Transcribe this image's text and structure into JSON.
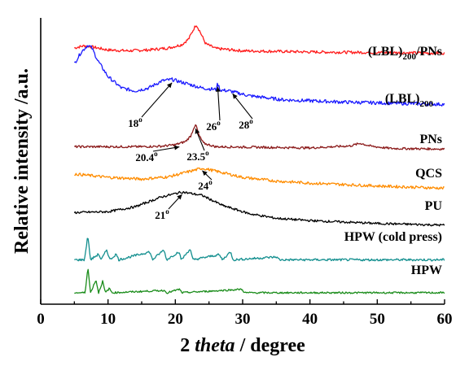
{
  "chart_data": {
    "type": "line",
    "xlabel_prefix": "2 ",
    "xlabel_italic": "theta",
    "xlabel_suffix": " / degree",
    "ylabel": "Relative intensity /a.u.",
    "xlim": [
      0,
      60
    ],
    "xticks": [
      0,
      10,
      20,
      30,
      40,
      50,
      60
    ],
    "series": [
      {
        "name": "(LBL)",
        "name_sub": "200",
        "name_suffix": "/PNs",
        "color": "#ff1a1a",
        "baseline": 0.885,
        "noise": 0.005,
        "points": [
          [
            5,
            0.01
          ],
          [
            6.5,
            0.018
          ],
          [
            8,
            0.012
          ],
          [
            10,
            0.003
          ],
          [
            13,
            0.0
          ],
          [
            16,
            0.003
          ],
          [
            19,
            0.01
          ],
          [
            21,
            0.022
          ],
          [
            22,
            0.042
          ],
          [
            22.7,
            0.075
          ],
          [
            23.1,
            0.092
          ],
          [
            23.6,
            0.07
          ],
          [
            24.5,
            0.025
          ],
          [
            26,
            0.008
          ],
          [
            30,
            0.0
          ],
          [
            40,
            -0.004
          ],
          [
            50,
            -0.006
          ],
          [
            60,
            -0.008
          ]
        ]
      },
      {
        "name": "(LBL)",
        "name_sub": "200",
        "name_suffix": "",
        "color": "#1a1aff",
        "baseline": 0.71,
        "noise": 0.006,
        "points": [
          [
            5,
            0.13
          ],
          [
            6,
            0.17
          ],
          [
            7,
            0.195
          ],
          [
            7.6,
            0.185
          ],
          [
            8.5,
            0.14
          ],
          [
            10,
            0.085
          ],
          [
            12,
            0.045
          ],
          [
            14,
            0.035
          ],
          [
            16,
            0.045
          ],
          [
            18,
            0.07
          ],
          [
            19.5,
            0.075
          ],
          [
            21,
            0.065
          ],
          [
            24,
            0.045
          ],
          [
            26,
            0.04
          ],
          [
            26.3,
            0.06
          ],
          [
            26.7,
            0.038
          ],
          [
            28,
            0.035
          ],
          [
            31,
            0.018
          ],
          [
            36,
            0.004
          ],
          [
            45,
            -0.004
          ],
          [
            60,
            -0.012
          ]
        ]
      },
      {
        "name": "PNs",
        "name_sub": "",
        "name_suffix": "",
        "color": "#8b1a1a",
        "baseline": 0.55,
        "noise": 0.004,
        "points": [
          [
            5,
            0.0
          ],
          [
            10,
            0.0
          ],
          [
            15,
            0.0
          ],
          [
            18,
            0.002
          ],
          [
            20,
            0.007
          ],
          [
            21.5,
            0.018
          ],
          [
            22.3,
            0.038
          ],
          [
            22.8,
            0.07
          ],
          [
            23.1,
            0.074
          ],
          [
            23.5,
            0.04
          ],
          [
            24.2,
            0.012
          ],
          [
            26,
            0.0
          ],
          [
            40,
            -0.004
          ],
          [
            46,
            0.003
          ],
          [
            47.5,
            0.012
          ],
          [
            49,
            0.002
          ],
          [
            52,
            -0.006
          ],
          [
            60,
            -0.008
          ]
        ]
      },
      {
        "name": "QCS",
        "name_sub": "",
        "name_suffix": "",
        "color": "#ff8c00",
        "baseline": 0.425,
        "noise": 0.005,
        "points": [
          [
            5,
            0.03
          ],
          [
            10,
            0.018
          ],
          [
            15,
            0.012
          ],
          [
            19,
            0.02
          ],
          [
            22,
            0.038
          ],
          [
            24,
            0.05
          ],
          [
            26,
            0.04
          ],
          [
            30,
            0.018
          ],
          [
            35,
            0.005
          ],
          [
            40,
            -0.002
          ],
          [
            50,
            -0.012
          ],
          [
            60,
            -0.02
          ]
        ]
      },
      {
        "name": "PU",
        "name_sub": "",
        "name_suffix": "",
        "color": "#000000",
        "baseline": 0.3,
        "noise": 0.004,
        "points": [
          [
            5,
            0.02
          ],
          [
            10,
            0.023
          ],
          [
            14,
            0.04
          ],
          [
            18,
            0.075
          ],
          [
            21,
            0.092
          ],
          [
            24,
            0.08
          ],
          [
            27,
            0.045
          ],
          [
            31,
            0.016
          ],
          [
            35,
            0.0
          ],
          [
            40,
            -0.008
          ],
          [
            50,
            -0.018
          ],
          [
            60,
            -0.024
          ]
        ]
      },
      {
        "name": "HPW (cold press)",
        "name_sub": "",
        "name_suffix": "",
        "color": "#138f8f",
        "baseline": 0.155,
        "noise": 0.004,
        "points": [
          [
            5,
            0.0
          ],
          [
            6.5,
            0.0
          ],
          [
            7,
            0.085
          ],
          [
            7.4,
            0.0
          ],
          [
            8.6,
            0.02
          ],
          [
            9.0,
            0.0
          ],
          [
            9.8,
            0.035
          ],
          [
            10.3,
            0.0
          ],
          [
            11.2,
            0.02
          ],
          [
            11.6,
            0.0
          ],
          [
            16.2,
            0.028
          ],
          [
            16.6,
            0.0
          ],
          [
            18.3,
            0.035
          ],
          [
            18.7,
            0.0
          ],
          [
            20.5,
            0.028
          ],
          [
            20.9,
            0.0
          ],
          [
            22.2,
            0.038
          ],
          [
            22.6,
            0.0
          ],
          [
            26.5,
            0.018
          ],
          [
            27,
            0.0
          ],
          [
            28.2,
            0.028
          ],
          [
            28.6,
            0.0
          ],
          [
            35,
            0.01
          ],
          [
            35.5,
            0.0
          ],
          [
            60,
            0.0
          ]
        ]
      },
      {
        "name": "HPW",
        "name_sub": "",
        "name_suffix": "",
        "color": "#1a8c1a",
        "baseline": 0.04,
        "noise": 0.003,
        "points": [
          [
            5,
            0.0
          ],
          [
            6.6,
            0.0
          ],
          [
            7,
            0.09
          ],
          [
            7.4,
            0.0
          ],
          [
            8.2,
            0.045
          ],
          [
            8.6,
            0.0
          ],
          [
            9.2,
            0.04
          ],
          [
            9.6,
            0.0
          ],
          [
            10.2,
            0.015
          ],
          [
            10.6,
            0.0
          ],
          [
            18.3,
            0.008
          ],
          [
            18.8,
            0.0
          ],
          [
            20.6,
            0.012
          ],
          [
            21.0,
            0.0
          ],
          [
            29.9,
            0.012
          ],
          [
            30.3,
            0.0
          ],
          [
            60,
            0.0
          ]
        ]
      }
    ],
    "labels": [
      {
        "main": "(LBL)",
        "sub": "200",
        "tail": "/PNs"
      },
      {
        "main": "(LBL)",
        "sub": "200",
        "tail": ""
      },
      {
        "main": "PNs",
        "sub": "",
        "tail": ""
      },
      {
        "main": "QCS",
        "sub": "",
        "tail": ""
      },
      {
        "main": "PU",
        "sub": "",
        "tail": ""
      },
      {
        "main": "HPW (cold press)",
        "sub": "",
        "tail": ""
      },
      {
        "main": "HPW",
        "sub": "",
        "tail": ""
      }
    ],
    "annotations": [
      {
        "text": "18",
        "sup": "o",
        "x": 19.5,
        "series": 1
      },
      {
        "text": "26",
        "sup": "o",
        "x": 26.3,
        "series": 1
      },
      {
        "text": "28",
        "sup": "o",
        "x": 28.5,
        "series": 1
      },
      {
        "text": "20.4",
        "sup": "o",
        "x": 20.4,
        "series": 2
      },
      {
        "text": "23.5",
        "sup": "o",
        "x": 23.0,
        "series": 2
      },
      {
        "text": "24",
        "sup": "o",
        "x": 24.0,
        "series": 3
      },
      {
        "text": "21",
        "sup": "o",
        "x": 21.0,
        "series": 4
      }
    ]
  }
}
